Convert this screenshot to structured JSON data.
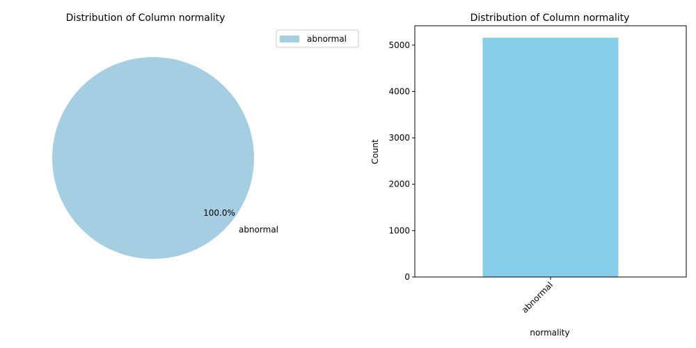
{
  "chart_data": [
    {
      "type": "pie",
      "title": "Distribution of Column normality",
      "labels": [
        "abnormal"
      ],
      "values": [
        100.0
      ],
      "autopct_labels": [
        "100.0%"
      ],
      "legend": [
        "abnormal"
      ],
      "legend_position": "top-right",
      "colors": [
        "#a6cee3"
      ]
    },
    {
      "type": "bar",
      "title": "Distribution of Column normality",
      "categories": [
        "abnormal"
      ],
      "values": [
        5160
      ],
      "xlabel": "normality",
      "ylabel": "Count",
      "ylim": [
        0,
        5418
      ],
      "yticks": [
        "0",
        "1000",
        "2000",
        "3000",
        "4000",
        "5000"
      ],
      "grid": false,
      "colors": [
        "#87ceeb"
      ]
    }
  ]
}
